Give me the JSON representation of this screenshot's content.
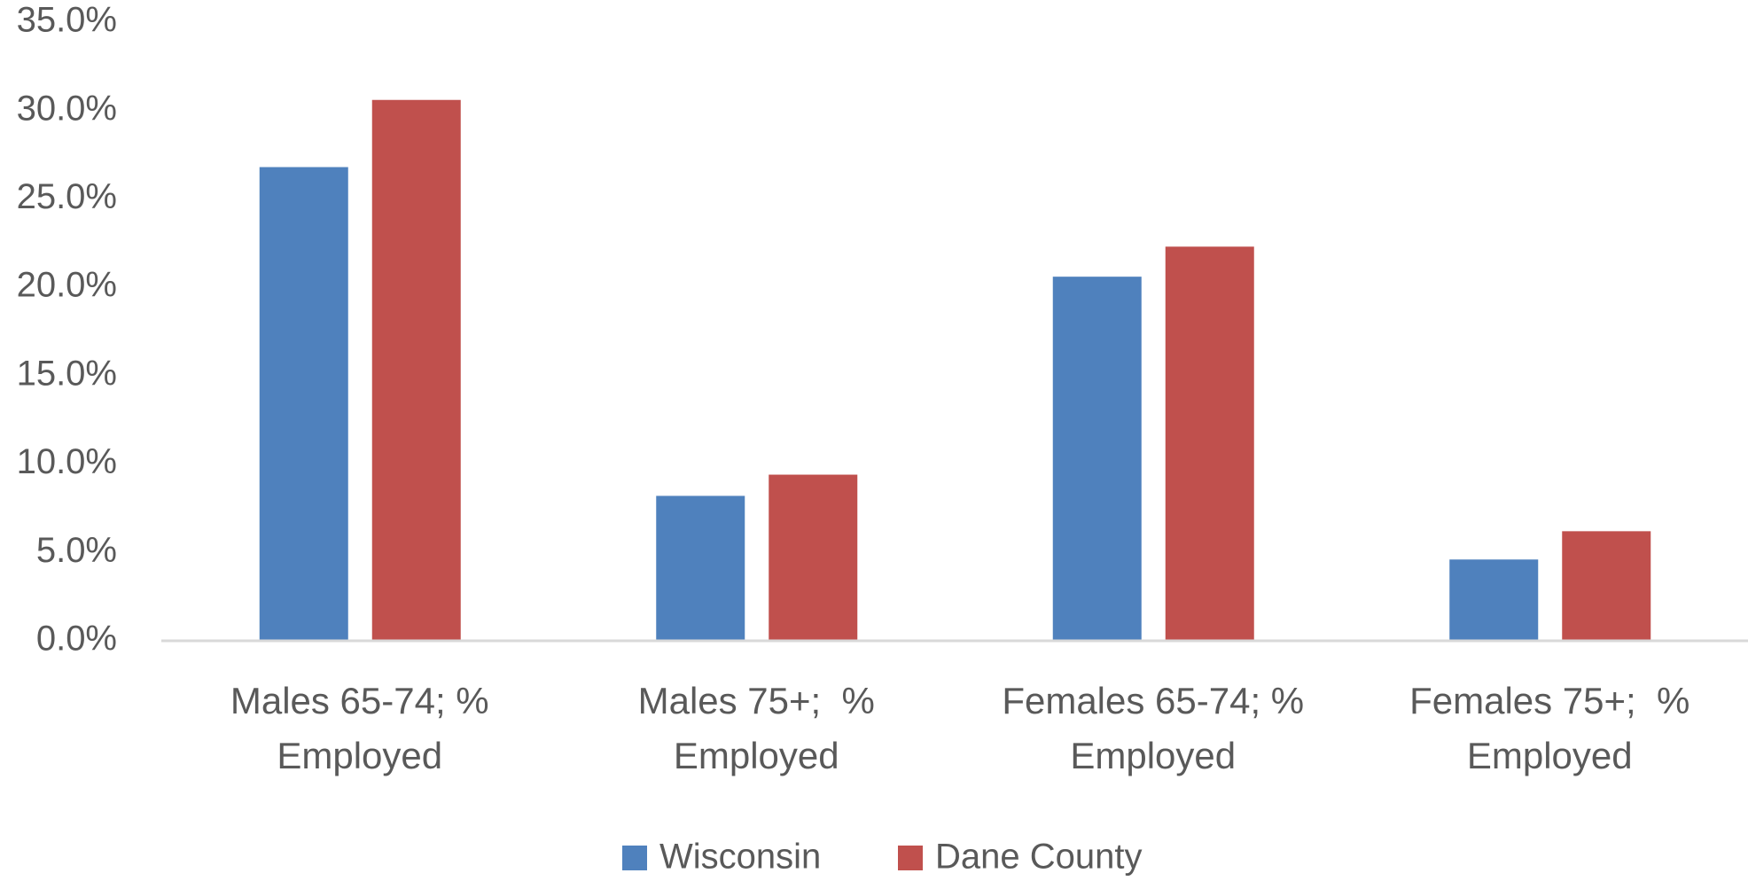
{
  "chart_data": {
    "type": "bar",
    "categories": [
      "Males 65-74; % Employed",
      "Males 75+;  % Employed",
      "Females 65-74; % Employed",
      "Females 75+;  % Employed"
    ],
    "series": [
      {
        "name": "Wisconsin",
        "color": "#4f81bd",
        "values": [
          26.8,
          8.2,
          20.6,
          4.6
        ]
      },
      {
        "name": "Dane County",
        "color": "#c0504d",
        "values": [
          30.6,
          9.4,
          22.3,
          6.2
        ]
      }
    ],
    "ylim": [
      0,
      35
    ],
    "yticks": [
      {
        "value": 0,
        "label": "0.0%"
      },
      {
        "value": 5,
        "label": "5.0%"
      },
      {
        "value": 10,
        "label": "10.0%"
      },
      {
        "value": 15,
        "label": "15.0%"
      },
      {
        "value": 20,
        "label": "20.0%"
      },
      {
        "value": 25,
        "label": "25.0%"
      },
      {
        "value": 30,
        "label": "30.0%"
      },
      {
        "value": 35,
        "label": "35.0%"
      }
    ],
    "grid": false,
    "legend": "bottom"
  }
}
